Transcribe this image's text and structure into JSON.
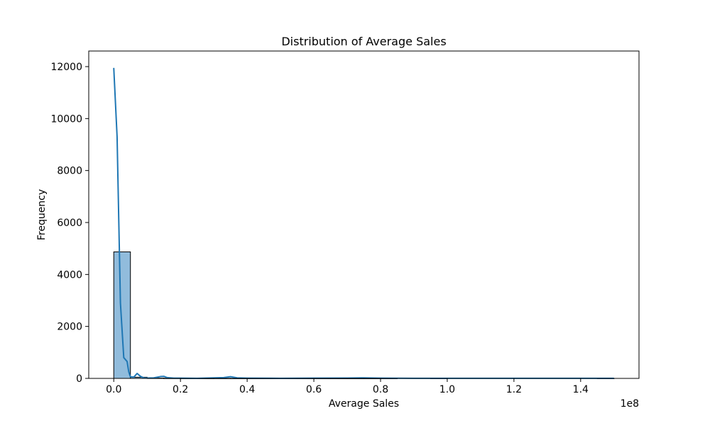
{
  "chart_data": {
    "type": "bar",
    "title": "Distribution of Average Sales",
    "xlabel": "Average Sales",
    "ylabel": "Frequency",
    "x_offset_label": "1e8",
    "xlim": [
      -0.075,
      1.575
    ],
    "ylim": [
      0,
      12600
    ],
    "x_ticks": [
      0.0,
      0.2,
      0.4,
      0.6,
      0.8,
      1.0,
      1.2,
      1.4
    ],
    "x_tick_labels": [
      "0.0",
      "0.2",
      "0.4",
      "0.6",
      "0.8",
      "1.0",
      "1.2",
      "1.4"
    ],
    "y_ticks": [
      0,
      2000,
      4000,
      6000,
      8000,
      10000,
      12000
    ],
    "y_tick_labels": [
      "0",
      "2000",
      "4000",
      "6000",
      "8000",
      "10000",
      "12000"
    ],
    "bin_width": 0.05,
    "bins": [
      {
        "x0": 0.0,
        "x1": 0.05,
        "count": 4870
      },
      {
        "x0": 0.05,
        "x1": 0.1,
        "count": 45
      },
      {
        "x0": 0.1,
        "x1": 0.15,
        "count": 10
      },
      {
        "x0": 0.15,
        "x1": 0.2,
        "count": 6
      },
      {
        "x0": 0.2,
        "x1": 0.25,
        "count": 3
      },
      {
        "x0": 0.25,
        "x1": 0.3,
        "count": 2
      },
      {
        "x0": 0.3,
        "x1": 0.35,
        "count": 3
      },
      {
        "x0": 0.35,
        "x1": 0.4,
        "count": 2
      },
      {
        "x0": 0.4,
        "x1": 0.45,
        "count": 1
      },
      {
        "x0": 0.45,
        "x1": 0.5,
        "count": 1
      },
      {
        "x0": 0.5,
        "x1": 0.55,
        "count": 1
      },
      {
        "x0": 0.55,
        "x1": 0.6,
        "count": 1
      },
      {
        "x0": 0.6,
        "x1": 0.65,
        "count": 1
      },
      {
        "x0": 0.65,
        "x1": 0.7,
        "count": 1
      },
      {
        "x0": 0.7,
        "x1": 0.75,
        "count": 1
      },
      {
        "x0": 0.75,
        "x1": 0.8,
        "count": 1
      },
      {
        "x0": 0.8,
        "x1": 0.85,
        "count": 1
      },
      {
        "x0": 0.85,
        "x1": 0.9,
        "count": 0
      },
      {
        "x0": 0.9,
        "x1": 0.95,
        "count": 0
      },
      {
        "x0": 0.95,
        "x1": 1.0,
        "count": 1
      },
      {
        "x0": 1.0,
        "x1": 1.05,
        "count": 0
      },
      {
        "x0": 1.05,
        "x1": 1.1,
        "count": 0
      },
      {
        "x0": 1.1,
        "x1": 1.15,
        "count": 0
      },
      {
        "x0": 1.15,
        "x1": 1.2,
        "count": 0
      },
      {
        "x0": 1.2,
        "x1": 1.25,
        "count": 0
      },
      {
        "x0": 1.25,
        "x1": 1.3,
        "count": 0
      },
      {
        "x0": 1.3,
        "x1": 1.35,
        "count": 0
      },
      {
        "x0": 1.35,
        "x1": 1.4,
        "count": 0
      },
      {
        "x0": 1.4,
        "x1": 1.45,
        "count": 0
      },
      {
        "x0": 1.45,
        "x1": 1.5,
        "count": 1
      }
    ],
    "kde": {
      "x": [
        0.0,
        0.01,
        0.02,
        0.03,
        0.04,
        0.045,
        0.05,
        0.06,
        0.07,
        0.08,
        0.09,
        0.1,
        0.12,
        0.14,
        0.15,
        0.16,
        0.18,
        0.2,
        0.25,
        0.3,
        0.33,
        0.35,
        0.37,
        0.4,
        0.5,
        0.6,
        0.7,
        0.75,
        0.8,
        0.9,
        1.0,
        1.2,
        1.4,
        1.5
      ],
      "y": [
        11950,
        9300,
        2900,
        800,
        650,
        250,
        60,
        50,
        190,
        80,
        20,
        15,
        20,
        70,
        80,
        30,
        10,
        10,
        5,
        20,
        30,
        65,
        20,
        10,
        5,
        10,
        15,
        20,
        10,
        5,
        5,
        5,
        5,
        5
      ]
    },
    "bar_fill": "#91bcdc",
    "bar_edge": "#000000",
    "kde_color": "#1f77b4",
    "grid": false,
    "legend": "none"
  }
}
